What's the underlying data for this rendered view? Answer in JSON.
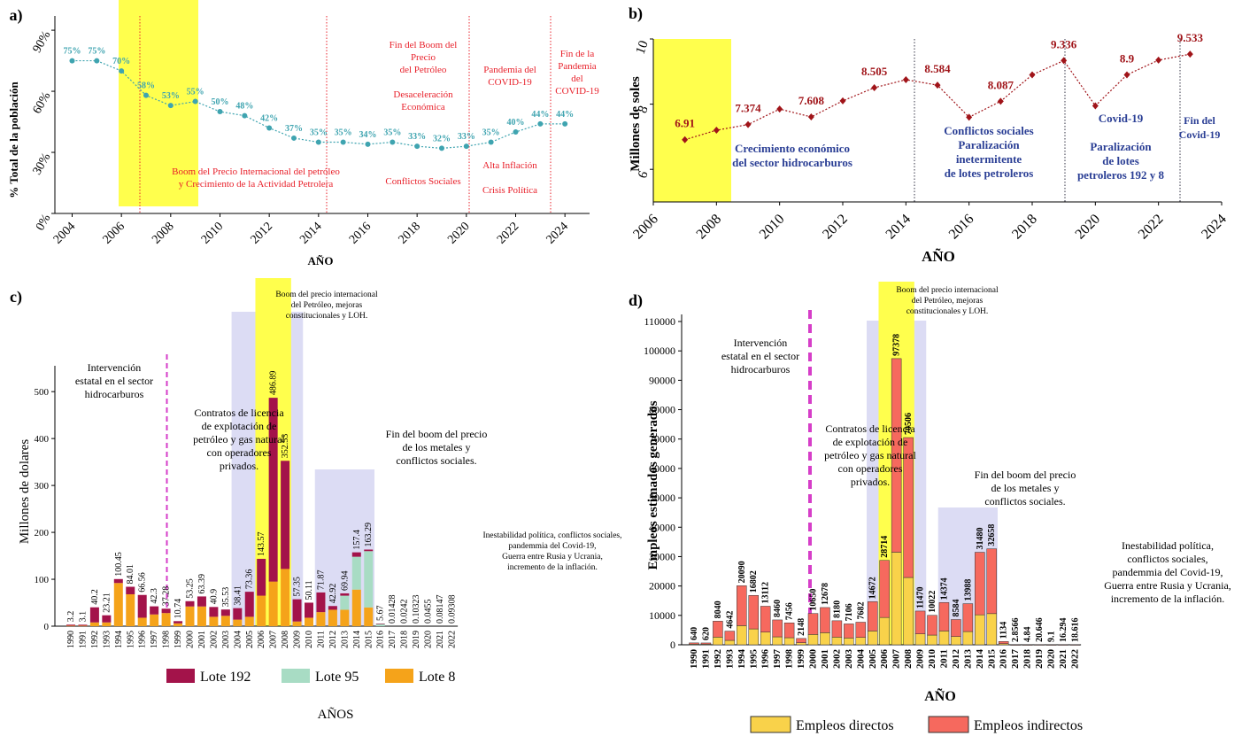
{
  "colors": {
    "teal": "#3fa4b0",
    "darkred": "#a01419",
    "red": "#e8202a",
    "navy": "#2b3f95",
    "yellow": "#ffff4d",
    "lavender": "#dcdcf4",
    "lote192": "#a3134a",
    "lote95": "#a8dcc4",
    "lote8": "#f5a31a",
    "directos": "#f9d24a",
    "indirectos": "#f6695e",
    "magenta": "#d63ec8"
  },
  "chart_data": [
    {
      "id": "a",
      "panel_label": "a)",
      "type": "line",
      "xlabel": "AÑO",
      "ylabel": "% Total de la población",
      "xlim": [
        2003.3,
        2025
      ],
      "ylim": [
        0,
        0.97
      ],
      "x_ticks": [
        "2004",
        "2006",
        "2008",
        "2010",
        "2012",
        "2014",
        "2016",
        "2018",
        "2020",
        "2022",
        "2024"
      ],
      "y_ticks": [
        "0%",
        "30%",
        "60%",
        "90%"
      ],
      "series": [
        {
          "x": [
            2004,
            2005,
            2006,
            2007,
            2008,
            2009,
            2010,
            2011,
            2012,
            2013,
            2014,
            2015,
            2016,
            2017,
            2018,
            2019,
            2020,
            2021,
            2022,
            2023,
            2024
          ],
          "values": [
            0.75,
            0.75,
            0.7,
            0.58,
            0.53,
            0.55,
            0.5,
            0.48,
            0.42,
            0.37,
            0.35,
            0.35,
            0.34,
            0.35,
            0.33,
            0.32,
            0.33,
            0.35,
            0.4,
            0.44,
            0.44
          ],
          "labels": [
            "75%",
            "75%",
            "70%",
            "58%",
            "53%",
            "55%",
            "50%",
            "48%",
            "42%",
            "37%",
            "35%",
            "35%",
            "34%",
            "35%",
            "33%",
            "32%",
            "33%",
            "35%",
            "40%",
            "44%",
            "44%"
          ]
        }
      ],
      "annotations": [
        {
          "lines": [
            "Boom del Precio Internacional del petróleo",
            "y Crecimiento de la Actividad Petrolera"
          ],
          "color": "red"
        },
        {
          "lines": [
            "Fin del Boom del",
            "Precio",
            "del Petróleo",
            "",
            "Desaceleración",
            "Económica"
          ],
          "color": "red"
        },
        {
          "lines": [
            "Conflictos Sociales"
          ],
          "color": "red"
        },
        {
          "lines": [
            "Pandemia del",
            "COVID-19"
          ],
          "color": "red"
        },
        {
          "lines": [
            "Alta Inflación",
            "",
            "Crisis Política"
          ],
          "color": "red"
        },
        {
          "lines": [
            "Fin de la",
            "Pandemia",
            "del",
            "COVID-19"
          ],
          "color": "red"
        }
      ]
    },
    {
      "id": "b",
      "panel_label": "b)",
      "type": "line",
      "xlabel": "AÑO",
      "ylabel": "Millones de soles",
      "xlim": [
        2006,
        2024
      ],
      "ylim": [
        5,
        10
      ],
      "x_ticks": [
        "2006",
        "2008",
        "2010",
        "2012",
        "2014",
        "2016",
        "2018",
        "2020",
        "2022",
        "2024"
      ],
      "y_ticks": [
        "6",
        "8",
        "10"
      ],
      "series": [
        {
          "x": [
            2007,
            2008,
            2009,
            2010,
            2011,
            2012,
            2013,
            2014,
            2015,
            2016,
            2017,
            2018,
            2019,
            2020,
            2021,
            2022,
            2023
          ],
          "values": [
            6.91,
            7.2,
            7.374,
            7.85,
            7.608,
            8.1,
            8.505,
            8.75,
            8.584,
            7.6,
            8.087,
            8.9,
            9.336,
            7.95,
            8.9,
            9.35,
            9.533
          ],
          "labels": [
            "6.91",
            "",
            "7.374",
            "",
            "7.608",
            "",
            "8.505",
            "",
            "8.584",
            "",
            "8.087",
            "",
            "9.336",
            "",
            "8.9",
            "",
            "9.533"
          ]
        }
      ],
      "annotations": [
        {
          "lines": [
            "Crecimiento económico",
            "del sector hidrocarburos"
          ],
          "color": "navy"
        },
        {
          "lines": [
            "Conflictos sociales",
            "Paralización",
            "inetermitente",
            "de lotes petroleros"
          ],
          "color": "navy"
        },
        {
          "lines": [
            "Covid-19",
            "",
            "Paralización",
            "de lotes",
            "petroleros 192 y 8"
          ],
          "color": "navy"
        },
        {
          "lines": [
            "Fin del",
            "Covid-19"
          ],
          "color": "navy"
        }
      ]
    },
    {
      "id": "c",
      "panel_label": "c)",
      "type": "bar",
      "stacked": true,
      "xlabel": "AÑOS",
      "ylabel": "Millones de dolares",
      "ylim": [
        0,
        540
      ],
      "y_ticks": [
        "0",
        "100",
        "200",
        "300",
        "400",
        "500"
      ],
      "categories": [
        "1990",
        "1991",
        "1992",
        "1993",
        "1994",
        "1995",
        "1996",
        "1997",
        "1998",
        "1999",
        "2000",
        "2001",
        "2002",
        "2003",
        "2004",
        "2005",
        "2006",
        "2007",
        "2008",
        "2009",
        "2010",
        "2011",
        "2012",
        "2013",
        "2014",
        "2015",
        "2016",
        "2017",
        "2018",
        "2019",
        "2020",
        "2021",
        "2022"
      ],
      "series": [
        {
          "name": "Lote 8",
          "values": [
            1,
            1,
            8,
            8,
            92,
            68,
            18,
            25,
            28,
            6,
            42,
            42,
            20,
            22,
            14,
            20,
            65,
            95,
            122,
            10,
            18,
            30,
            35,
            35,
            78,
            40,
            0,
            0,
            0,
            0,
            0,
            0,
            0
          ]
        },
        {
          "name": "Lote 95",
          "values": [
            0,
            0,
            0,
            0,
            0,
            0,
            0,
            0,
            0,
            0,
            0,
            0,
            0,
            0,
            0,
            0,
            0,
            0,
            0,
            0,
            0,
            0,
            0,
            30,
            70,
            120,
            5,
            0,
            0,
            0,
            0,
            0,
            0
          ]
        },
        {
          "name": "Lote 192",
          "values": [
            2.2,
            2.1,
            32.2,
            15.21,
            8.45,
            16.01,
            48.56,
            17.3,
            9.28,
            4.74,
            11.25,
            21.39,
            20.9,
            13.53,
            24.41,
            53.36,
            78.57,
            391.89,
            230.53,
            47.35,
            32.11,
            41.87,
            7.92,
            4.94,
            9.4,
            3.29,
            0.67,
            0,
            0,
            0,
            0,
            0,
            0
          ]
        }
      ],
      "totals": [
        "3.2",
        "3.1",
        "40.2",
        "23.21",
        "100.45",
        "84.01",
        "66.56",
        "42.3",
        "37.28",
        "10.74",
        "53.25",
        "63.39",
        "40.9",
        "35.53",
        "38.41",
        "73.36",
        "143.57",
        "486.89",
        "352.53",
        "57.35",
        "50.11",
        "71.87",
        "42.92",
        "69.94",
        "157.4",
        "163.29",
        "5.67",
        "0.01428",
        "0.0242",
        "0.10323",
        "0.0455",
        "0.08147",
        "0.09308"
      ],
      "legend": [
        "Lote 192",
        "Lote 95",
        "Lote 8"
      ],
      "annotations": [
        {
          "lines": [
            "Intervención",
            "estatal en el sector",
            "hidrocarburos"
          ]
        },
        {
          "lines": [
            "Contratos de licencia",
            "de explotación de",
            "petróleo y gas natural",
            "con operadores",
            "privados."
          ]
        },
        {
          "lines": [
            "Boom del precio internacional",
            "del Petróleo, mejoras",
            "constitucionales y LOH."
          ]
        },
        {
          "lines": [
            "Fin del boom del precio",
            "de los metales y",
            "conflictos sociales."
          ]
        },
        {
          "lines": [
            "Inestabilidad política, conflictos sociales,",
            "pandemmia del Covid-19,",
            "Guerra entre Rusia y Ucrania,",
            "incremento de la inflación."
          ]
        }
      ]
    },
    {
      "id": "d",
      "panel_label": "d)",
      "type": "bar",
      "stacked": true,
      "xlabel": "AÑO",
      "ylabel": "Empleos estimados generados",
      "ylim": [
        0,
        110000
      ],
      "y_ticks": [
        "0",
        "10000",
        "20000",
        "30000",
        "40000",
        "50000",
        "60000",
        "70000",
        "80000",
        "90000",
        "100000",
        "110000"
      ],
      "categories": [
        "1990",
        "1991",
        "1992",
        "1993",
        "1994",
        "1995",
        "1996",
        "1997",
        "1998",
        "1999",
        "2000",
        "2001",
        "2002",
        "2003",
        "2004",
        "2005",
        "2006",
        "2007",
        "2008",
        "2009",
        "2010",
        "2011",
        "2012",
        "2013",
        "2014",
        "2015",
        "2016",
        "2017",
        "2018",
        "2019",
        "2020",
        "2021",
        "2022"
      ],
      "series": [
        {
          "name": "Empleos directos",
          "values": [
            210,
            200,
            2600,
            1500,
            6500,
            5400,
            4300,
            2700,
            2400,
            700,
            3500,
            4100,
            2600,
            2300,
            2500,
            4700,
            9300,
            31500,
            22900,
            3700,
            3300,
            4700,
            2800,
            4500,
            10200,
            10600,
            370,
            0,
            0,
            0,
            0,
            0,
            0
          ]
        },
        {
          "name": "Empleos indirectos",
          "values": [
            430,
            420,
            5440,
            3142,
            13590,
            11402,
            8812,
            5760,
            5056,
            1448,
            7150,
            8578,
            5580,
            4806,
            5182,
            9972,
            19414,
            65878,
            47606,
            7770,
            6722,
            9674,
            5784,
            9488,
            21280,
            22058,
            764,
            2.8566,
            4.84,
            20.646,
            9.1,
            16.294,
            18.616
          ]
        }
      ],
      "totals": [
        "640",
        "620",
        "8040",
        "4642",
        "20090",
        "16802",
        "13112",
        "8460",
        "7456",
        "2148",
        "10650",
        "12678",
        "8180",
        "7106",
        "7682",
        "14672",
        "28714",
        "97378",
        "70506",
        "11470",
        "10022",
        "14374",
        "8584",
        "13988",
        "31480",
        "32658",
        "1134",
        "2.8566",
        "4.84",
        "20.646",
        "9.1",
        "16.294",
        "18.616"
      ],
      "legend": [
        "Empleos directos",
        "Empleos indirectos"
      ],
      "annotations": [
        {
          "lines": [
            "Intervención",
            "estatal en el sector",
            "hidrocarburos"
          ]
        },
        {
          "lines": [
            "Contratos de licencia",
            "de explotación de",
            "petróleo y gas natural",
            "con operadores",
            "privados."
          ]
        },
        {
          "lines": [
            "Boom del precio internacional",
            "del Petróleo, mejoras",
            "constitucionales y LOH."
          ]
        },
        {
          "lines": [
            "Fin del boom del precio",
            "de los metales y",
            "conflictos sociales."
          ]
        },
        {
          "lines": [
            "Inestabilidad política,",
            "conflictos sociales,",
            "pandemmia del Covid-19,",
            "Guerra entre Rusia y Ucrania,",
            "incremento de la inflación."
          ]
        }
      ]
    }
  ]
}
